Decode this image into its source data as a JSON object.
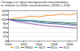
{
  "chart_data": {
    "type": "line",
    "title": "Changes in urban background concentrations",
    "subtitle": "in relation to 2000 concentrations (2000 = 100)",
    "x": [
      2000,
      2001,
      2002,
      2003,
      2004,
      2005,
      2006,
      2007,
      2008,
      2009
    ],
    "xlim": [
      2000,
      2009
    ],
    "xticks": [
      2000,
      2002,
      2004,
      2006,
      2008
    ],
    "ylim": [
      0,
      140
    ],
    "yticks": [
      0,
      20,
      40,
      60,
      80,
      100,
      120,
      140
    ],
    "grid": true,
    "series": [
      {
        "name": "O3",
        "color": "#f28c28",
        "values": [
          100,
          105,
          110,
          115,
          112,
          118,
          120,
          125,
          122,
          128
        ]
      },
      {
        "name": "PM10",
        "color": "#8b5a2b",
        "values": [
          100,
          97,
          95,
          96,
          90,
          88,
          85,
          84,
          80,
          78
        ]
      },
      {
        "name": "NO2",
        "color": "#2aa8a8",
        "values": [
          100,
          98,
          97,
          95,
          93,
          90,
          88,
          87,
          85,
          84
        ]
      },
      {
        "name": "NOx",
        "color": "#2b5fb4",
        "values": [
          100,
          95,
          92,
          90,
          86,
          82,
          80,
          78,
          75,
          72
        ]
      },
      {
        "name": "SO2",
        "color": "#8e4fa8",
        "values": [
          100,
          90,
          85,
          80,
          75,
          70,
          68,
          65,
          62,
          60
        ]
      }
    ]
  }
}
